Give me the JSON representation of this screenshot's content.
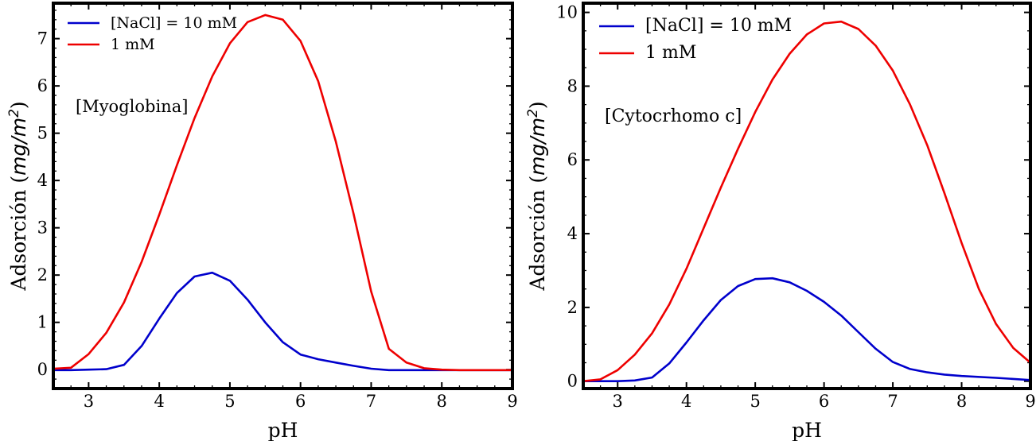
{
  "chart_data": [
    {
      "type": "line",
      "xlabel": "pH",
      "ylabel": "Adsorción (mg/m²)",
      "ylabel_text": "Adsorción (",
      "ylabel_italic": "mg/m",
      "ylabel_sup": "2",
      "ylabel_close": ")",
      "annotation": "[Myoglobina]",
      "xlim": [
        2.5,
        9.0
      ],
      "ylim": [
        -0.4,
        7.75
      ],
      "xticks": [
        3,
        4,
        5,
        6,
        7,
        8,
        9
      ],
      "yticks": [
        0,
        1,
        2,
        3,
        4,
        5,
        6,
        7
      ],
      "legend_position": "top-left",
      "series": [
        {
          "name": "[NaCl] = 10 mM",
          "color": "#0000cc",
          "x": [
            2.5,
            2.75,
            3.0,
            3.25,
            3.5,
            3.75,
            4.0,
            4.25,
            4.5,
            4.75,
            5.0,
            5.25,
            5.5,
            5.75,
            6.0,
            6.25,
            6.5,
            6.75,
            7.0,
            7.25,
            7.5,
            7.75,
            8.0,
            8.5,
            9.0
          ],
          "y": [
            -0.01,
            -0.01,
            0.0,
            0.01,
            0.1,
            0.5,
            1.08,
            1.62,
            1.97,
            2.05,
            1.88,
            1.48,
            1.0,
            0.58,
            0.32,
            0.22,
            0.15,
            0.08,
            0.02,
            -0.01,
            -0.01,
            -0.01,
            -0.01,
            -0.01,
            -0.01
          ]
        },
        {
          "name": "1 mM",
          "color": "#ee0000",
          "x": [
            2.5,
            2.75,
            3.0,
            3.25,
            3.5,
            3.75,
            4.0,
            4.25,
            4.5,
            4.75,
            5.0,
            5.25,
            5.5,
            5.75,
            6.0,
            6.25,
            6.5,
            6.75,
            7.0,
            7.25,
            7.5,
            7.75,
            8.0,
            8.25,
            8.5,
            9.0
          ],
          "y": [
            0.02,
            0.04,
            0.33,
            0.78,
            1.42,
            2.28,
            3.28,
            4.32,
            5.32,
            6.2,
            6.9,
            7.35,
            7.5,
            7.4,
            6.95,
            6.1,
            4.82,
            3.3,
            1.65,
            0.44,
            0.15,
            0.03,
            0.0,
            -0.01,
            -0.01,
            -0.01
          ]
        }
      ]
    },
    {
      "type": "line",
      "xlabel": "pH",
      "ylabel": "Adsorción (mg/m²)",
      "ylabel_text": "Adsorción (",
      "ylabel_italic": "mg/m",
      "ylabel_sup": "2",
      "ylabel_close": ")",
      "annotation": "[Cytocrhomo c]",
      "xlim": [
        2.5,
        9.0
      ],
      "ylim": [
        -0.2,
        10.25
      ],
      "xticks": [
        3,
        4,
        5,
        6,
        7,
        8,
        9
      ],
      "yticks": [
        0,
        2,
        4,
        6,
        8,
        10
      ],
      "legend_position": "top-left",
      "series": [
        {
          "name": "[NaCl] = 10 mM",
          "color": "#0000cc",
          "x": [
            2.5,
            2.75,
            3.0,
            3.25,
            3.5,
            3.75,
            4.0,
            4.25,
            4.5,
            4.75,
            5.0,
            5.25,
            5.5,
            5.75,
            6.0,
            6.25,
            6.5,
            6.75,
            7.0,
            7.25,
            7.5,
            7.75,
            8.0,
            8.5,
            9.0
          ],
          "y": [
            0.0,
            0.0,
            0.0,
            0.02,
            0.1,
            0.48,
            1.05,
            1.65,
            2.2,
            2.58,
            2.77,
            2.79,
            2.68,
            2.45,
            2.15,
            1.78,
            1.33,
            0.88,
            0.52,
            0.33,
            0.24,
            0.18,
            0.14,
            0.09,
            0.03
          ]
        },
        {
          "name": "1 mM",
          "color": "#ee0000",
          "x": [
            2.5,
            2.75,
            3.0,
            3.25,
            3.5,
            3.75,
            4.0,
            4.25,
            4.5,
            4.75,
            5.0,
            5.25,
            5.5,
            5.75,
            6.0,
            6.25,
            6.5,
            6.75,
            7.0,
            7.25,
            7.5,
            7.75,
            8.0,
            8.25,
            8.5,
            8.75,
            9.0
          ],
          "y": [
            0.0,
            0.05,
            0.3,
            0.72,
            1.3,
            2.08,
            3.05,
            4.15,
            5.25,
            6.3,
            7.3,
            8.18,
            8.88,
            9.4,
            9.7,
            9.75,
            9.55,
            9.1,
            8.42,
            7.5,
            6.4,
            5.1,
            3.75,
            2.5,
            1.55,
            0.9,
            0.5
          ]
        }
      ]
    }
  ]
}
